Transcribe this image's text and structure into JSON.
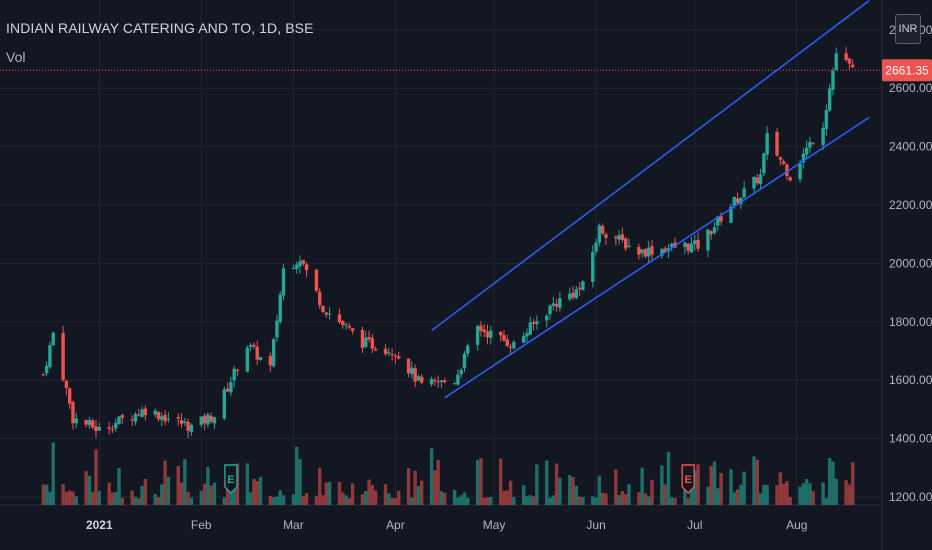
{
  "header": {
    "title": "INDIAN RAILWAY CATERING AND TO, 1D, BSE",
    "volume_label": "Vol",
    "currency": "INR"
  },
  "last_price": {
    "label": "2661.35",
    "value": 2661.35
  },
  "colors": {
    "background": "#131722",
    "grid": "#232632",
    "up": "#26a69a",
    "down": "#ef5350",
    "vol_up": "#1f6f69",
    "vol_down": "#8f3a3a",
    "channel": "#2962ff",
    "axis_text": "#b2b5be",
    "price_line": "#ef5350"
  },
  "chart_data": {
    "type": "candlestick",
    "symbol": "INDIAN RAILWAY CATERING AND TO",
    "interval": "1D",
    "exchange": "BSE",
    "y_axis": {
      "ticks": [
        "1200.00",
        "1400.00",
        "1600.00",
        "1800.00",
        "2000.00",
        "2200.00",
        "2400.00",
        "2600.00",
        "2800.00"
      ],
      "range": [
        1200,
        2800
      ]
    },
    "x_axis": {
      "ticks": [
        "2021",
        "Feb",
        "Mar",
        "Apr",
        "May",
        "Jun",
        "Jul",
        "Aug"
      ]
    },
    "price_points": [
      {
        "date": "2020-12-15",
        "price": 1620
      },
      {
        "date": "2020-12-18",
        "price": 1760
      },
      {
        "date": "2020-12-24",
        "price": 1470
      },
      {
        "date": "2021-01-01",
        "price": 1430
      },
      {
        "date": "2021-01-15",
        "price": 1500
      },
      {
        "date": "2021-01-29",
        "price": 1440
      },
      {
        "date": "2021-02-05",
        "price": 1480
      },
      {
        "date": "2021-02-15",
        "price": 1720
      },
      {
        "date": "2021-02-22",
        "price": 1640
      },
      {
        "date": "2021-02-26",
        "price": 1980
      },
      {
        "date": "2021-03-03",
        "price": 2020
      },
      {
        "date": "2021-03-10",
        "price": 1850
      },
      {
        "date": "2021-03-22",
        "price": 1730
      },
      {
        "date": "2021-04-01",
        "price": 1700
      },
      {
        "date": "2021-04-09",
        "price": 1580
      },
      {
        "date": "2021-04-19",
        "price": 1600
      },
      {
        "date": "2021-04-26",
        "price": 1780
      },
      {
        "date": "2021-05-07",
        "price": 1720
      },
      {
        "date": "2021-05-19",
        "price": 1860
      },
      {
        "date": "2021-05-28",
        "price": 1920
      },
      {
        "date": "2021-06-02",
        "price": 2120
      },
      {
        "date": "2021-06-14",
        "price": 2040
      },
      {
        "date": "2021-06-28",
        "price": 2060
      },
      {
        "date": "2021-07-02",
        "price": 2060
      },
      {
        "date": "2021-07-12",
        "price": 2200
      },
      {
        "date": "2021-07-21",
        "price": 2300
      },
      {
        "date": "2021-07-23",
        "price": 2430
      },
      {
        "date": "2021-07-30",
        "price": 2300
      },
      {
        "date": "2021-08-09",
        "price": 2480
      },
      {
        "date": "2021-08-13",
        "price": 2720
      },
      {
        "date": "2021-08-18",
        "price": 2661.35
      }
    ],
    "channel": {
      "upper": [
        {
          "date": "2021-04-12",
          "price": 1770
        },
        {
          "date": "2021-08-23",
          "price": 2900
        }
      ],
      "lower": [
        {
          "date": "2021-04-16",
          "price": 1540
        },
        {
          "date": "2021-08-23",
          "price": 2500
        }
      ]
    },
    "events": [
      {
        "type": "earnings",
        "marker": "E",
        "date": "2021-02-10"
      },
      {
        "type": "earnings",
        "marker": "E",
        "date": "2021-06-29"
      }
    ]
  }
}
